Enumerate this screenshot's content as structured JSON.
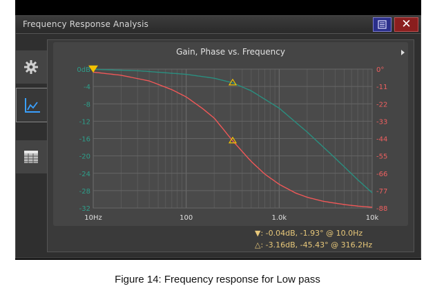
{
  "window": {
    "title": "Frequency Response Analysis",
    "close_symbol": "✕"
  },
  "sidebar": {
    "items": [
      {
        "icon": "gear-icon"
      },
      {
        "icon": "chart-icon"
      },
      {
        "icon": "table-icon"
      }
    ]
  },
  "menu_icon": "menu-icon",
  "chart_data": {
    "type": "line",
    "title": "Gain, Phase vs. Frequency",
    "x_scale": "log",
    "xlim": [
      10,
      10000
    ],
    "x_ticks": [
      {
        "value": 10,
        "label": "10Hz"
      },
      {
        "value": 100,
        "label": "100"
      },
      {
        "value": 1000,
        "label": "1.0k"
      },
      {
        "value": 10000,
        "label": "10k"
      }
    ],
    "left_axis": {
      "ylim": [
        -32,
        0
      ],
      "ticks": [
        "0dB",
        "-4",
        "-8",
        "-12",
        "-16",
        "-20",
        "-24",
        "-28",
        "-32"
      ],
      "color": "#2e9e8a"
    },
    "right_axis": {
      "ylim": [
        -88,
        0
      ],
      "ticks": [
        "0°",
        "-11",
        "-22",
        "-33",
        "-44",
        "-55",
        "-66",
        "-77",
        "-88"
      ],
      "color": "#f06060"
    },
    "grid": true,
    "series": [
      {
        "axis": "left",
        "color": "#2a8f80",
        "x": [
          10,
          31.6,
          100,
          200,
          316.2,
          500,
          1000,
          2000,
          4000,
          7000,
          10000
        ],
        "y": [
          -0.04,
          -0.4,
          -1.2,
          -2.1,
          -3.16,
          -5.0,
          -9.0,
          -14.5,
          -20.5,
          -25.5,
          -28.5
        ]
      },
      {
        "axis": "right",
        "color": "#f05858",
        "x": [
          10,
          20,
          40,
          70,
          100,
          150,
          200,
          316.2,
          500,
          700,
          1000,
          1500,
          2000,
          3000,
          5000,
          7000,
          10000
        ],
        "y": [
          -1.93,
          -3.9,
          -7.5,
          -13.0,
          -17.6,
          -25.0,
          -31.0,
          -45.43,
          -58.5,
          -66.5,
          -73.0,
          -78.5,
          -81.2,
          -83.8,
          -85.8,
          -86.8,
          -87.5
        ]
      }
    ],
    "markers": [
      {
        "type": "filled",
        "x": 10,
        "y_gain": -0.04
      },
      {
        "type": "hollow",
        "x": 316.2,
        "y_gain": -3.16,
        "y_phase": -45.43
      }
    ]
  },
  "legend": {
    "line1": "▼:  -0.04dB, -1.93° @ 10.0Hz",
    "line2": "△:  -3.16dB, -45.43° @ 316.2Hz"
  },
  "caption": "Figure 14: Frequency response for Low pass"
}
